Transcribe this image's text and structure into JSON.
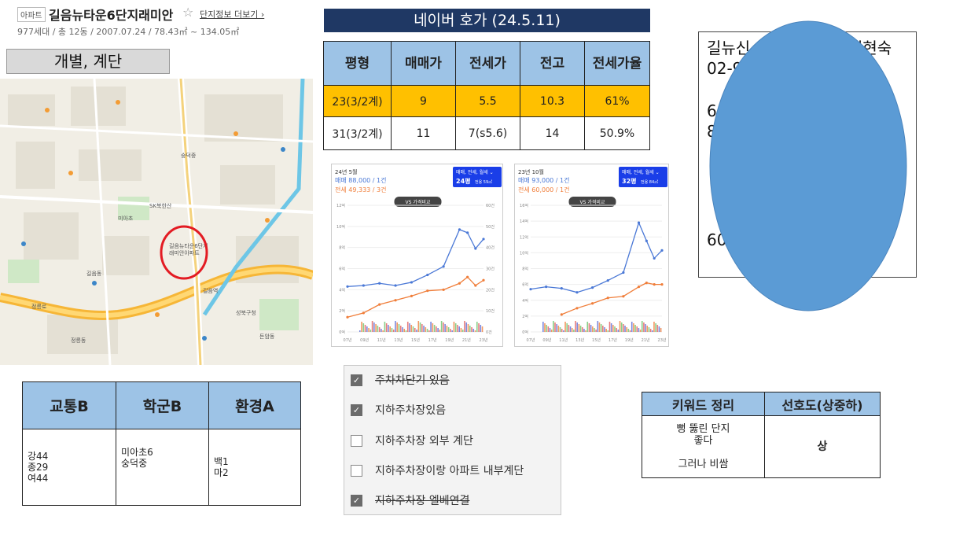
{
  "header": {
    "badge": "아파트",
    "title": "길음뉴타운6단지래미안",
    "star_icon": "☆",
    "more_link": "단지정보 더보기 ›",
    "meta": "977세대 / 총 12동 / 2007.07.24 / 78.43㎡ ~ 134.05㎡"
  },
  "section_label": "개별, 계단",
  "map": {
    "labels": [
      "길음뉴타운6단지",
      "래미안아파트",
      "길음역",
      "정릉로",
      "미아초",
      "숭덕중",
      "길음동",
      "돈암동",
      "SK북한산",
      "성북구청",
      "정릉동"
    ],
    "highlight_color": "#e31b23"
  },
  "naver": {
    "title": "네이버 호가 (24.5.11)",
    "table": {
      "headers": [
        "평형",
        "매매가",
        "전세가",
        "전고",
        "전세가율"
      ],
      "rows": [
        {
          "cells": [
            "23(3/2계)",
            "9",
            "5.5",
            "10.3",
            "61%"
          ],
          "highlight": true
        },
        {
          "cells": [
            "31(3/2계)",
            "11",
            "7(s5.6)",
            "14",
            "50.9%"
          ],
          "highlight": false
        }
      ]
    }
  },
  "charts": [
    {
      "period": "24년 5월",
      "sale_text": "매매 88,000 / 1건",
      "jeonse_text": "전세 49,333 / 3건",
      "dropdown_label": "매매, 전세, 월세 ⌄",
      "size_label": "24평",
      "size_sub": "전용 59㎡",
      "compare_label": "VS 가격비교",
      "y_left": [
        "12억",
        "10억",
        "8억",
        "6억",
        "4억",
        "2억",
        "0억"
      ],
      "y_right": [
        "60건",
        "50건",
        "40건",
        "30건",
        "20건",
        "10건",
        "0건"
      ],
      "x_ticks": [
        "07년",
        "09년",
        "11년",
        "13년",
        "15년",
        "17년",
        "19년",
        "21년",
        "23년"
      ],
      "chart_data": {
        "type": "line",
        "x": [
          2007,
          2009,
          2011,
          2013,
          2015,
          2017,
          2019,
          2021,
          2022,
          2023,
          2024
        ],
        "series": [
          {
            "values": [
              4.3,
              4.4,
              4.6,
              4.4,
              4.7,
              5.4,
              6.2,
              9.7,
              9.4,
              7.9,
              8.8
            ]
          },
          {
            "values": [
              1.4,
              1.8,
              2.6,
              3.0,
              3.4,
              3.9,
              4.0,
              4.6,
              5.2,
              4.4,
              4.9
            ]
          }
        ],
        "ylim": [
          0,
          12
        ]
      },
      "colors": {
        "sale": "#4a78d6",
        "jeonse": "#f07e3a"
      }
    },
    {
      "period": "23년 10월",
      "sale_text": "매매 93,000 / 1건",
      "jeonse_text": "전세 60,000 / 1건",
      "dropdown_label": "매매, 전세, 월세 ⌄",
      "size_label": "32평",
      "size_sub": "전용 84㎡",
      "compare_label": "VS 가격비교",
      "y_left": [
        "16억",
        "14억",
        "12억",
        "10억",
        "8억",
        "6억",
        "4억",
        "2억",
        "0억"
      ],
      "x_ticks": [
        "07년",
        "09년",
        "11년",
        "13년",
        "15년",
        "17년",
        "19년",
        "21년",
        "23년"
      ],
      "chart_data": {
        "type": "line",
        "x": [
          2007,
          2009,
          2011,
          2013,
          2015,
          2017,
          2019,
          2021,
          2022,
          2023,
          2024
        ],
        "series": [
          {
            "values": [
              5.4,
              5.7,
              5.5,
              5.0,
              5.6,
              6.5,
              7.5,
              13.8,
              11.5,
              9.3,
              10.3
            ]
          },
          {
            "values": [
              0,
              0,
              2.2,
              3.0,
              3.6,
              4.3,
              4.5,
              5.7,
              6.2,
              6.0,
              6.0
            ]
          }
        ],
        "ylim": [
          0,
          16
        ]
      },
      "colors": {
        "sale": "#4a78d6",
        "jeonse": "#f07e3a"
      }
    }
  ],
  "memo": {
    "lines": [
      "길뉴신",
      "서현숙",
      "02-9",
      "60",
      "8",
      "60"
    ],
    "oval_color": "#5b9bd5"
  },
  "rating": {
    "headers": [
      "교통B",
      "학군B",
      "환경A"
    ],
    "cells": [
      "강44\n종29\n여44",
      "미아초6\n숭덕중",
      "백1\n마2"
    ]
  },
  "checklist": {
    "items": [
      {
        "label": "주차차단기 있음",
        "checked": true,
        "struck": true
      },
      {
        "label": "지하주차장있음",
        "checked": true,
        "struck": false
      },
      {
        "label": "지하주차장 외부 계단",
        "checked": false,
        "struck": false
      },
      {
        "label": "지하주차장이랑 아파트 내부계단",
        "checked": false,
        "struck": false
      },
      {
        "label": "지하주차장 엘베연결",
        "checked": true,
        "struck": true
      }
    ]
  },
  "keyword": {
    "headers": [
      "키워드 정리",
      "선호도(상중하)"
    ],
    "keyword_text": "뻥 뚫린 단지\n좋다\n\n그러나 비쌈",
    "preference": "상"
  }
}
